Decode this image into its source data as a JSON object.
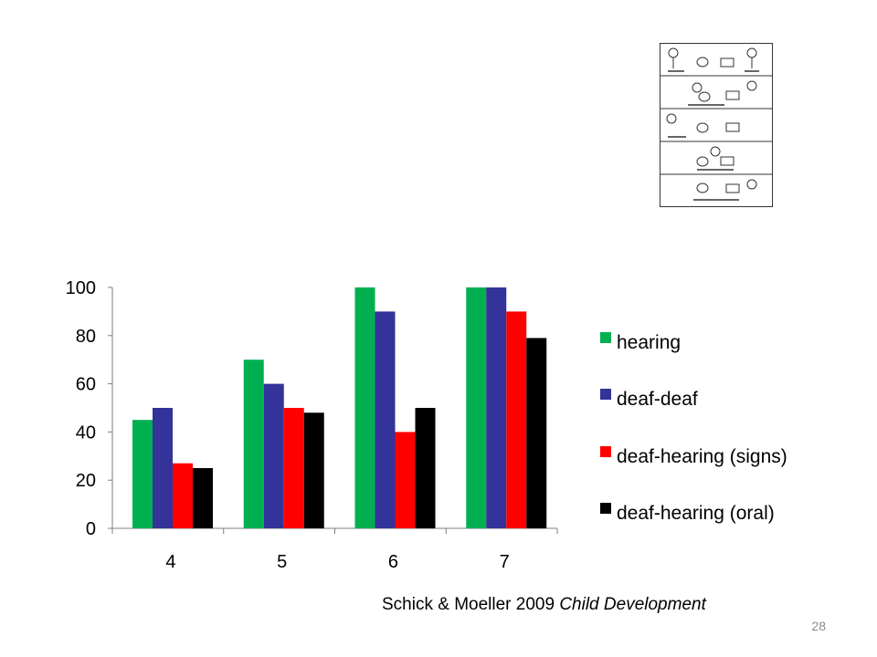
{
  "chart_data": {
    "type": "bar",
    "categories": [
      "4",
      "5",
      "6",
      "7"
    ],
    "series": [
      {
        "name": "hearing",
        "color": "#00b050",
        "values": [
          45,
          70,
          100,
          100
        ]
      },
      {
        "name": "deaf-deaf",
        "color": "#333399",
        "values": [
          50,
          60,
          90,
          100
        ]
      },
      {
        "name": "deaf-hearing (signs)",
        "color": "#ff0000",
        "values": [
          27,
          50,
          40,
          90
        ]
      },
      {
        "name": "deaf-hearing (oral)",
        "color": "#000000",
        "values": [
          25,
          48,
          50,
          79
        ]
      }
    ],
    "ylim": [
      0,
      100
    ],
    "yticks": [
      "0",
      "20",
      "40",
      "60",
      "80",
      "100"
    ],
    "grid": false,
    "legend_position": "right",
    "title": "",
    "xlabel": "",
    "ylabel": ""
  },
  "citation": {
    "authors_year": "Schick & Moeller 2009 ",
    "journal": "Child Development"
  },
  "slide_number": "28",
  "comic_strip": {
    "panel_icon": "sally-anne-comic-panel-icon"
  }
}
